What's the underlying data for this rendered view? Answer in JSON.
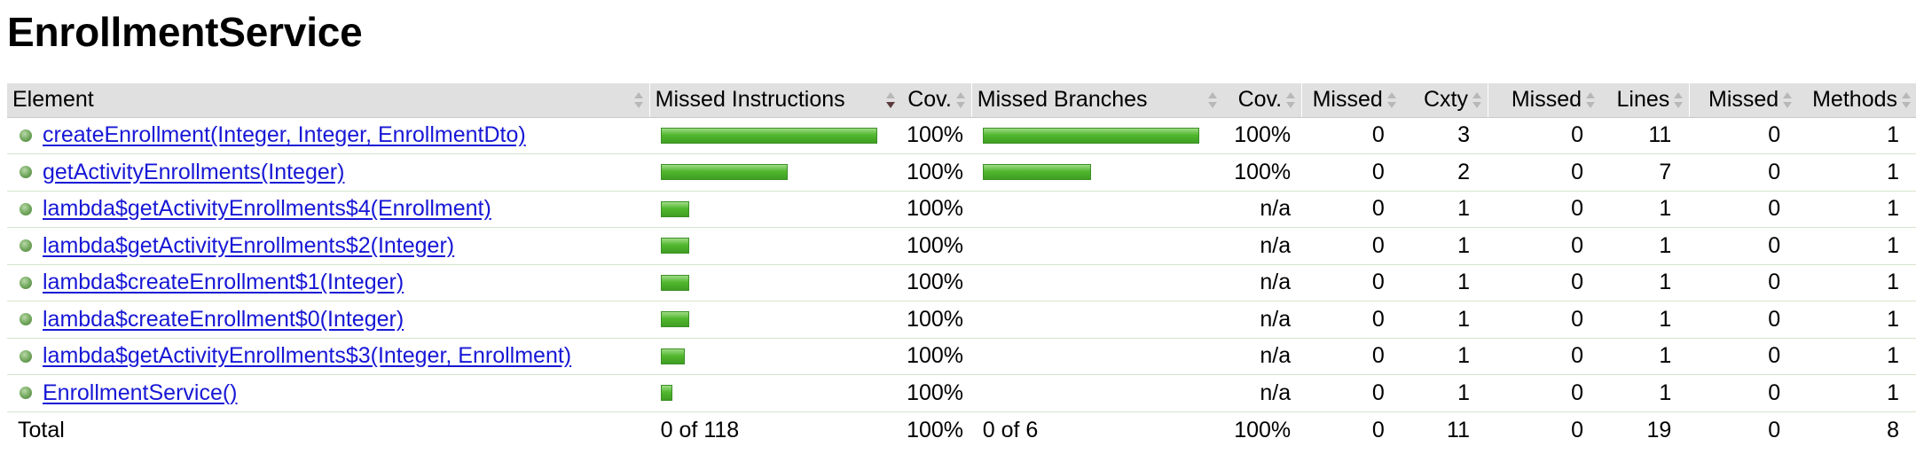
{
  "page": {
    "title": "EnrollmentService"
  },
  "colors": {
    "header_bg": "#e0e0e0",
    "link": "#1717d6",
    "bar_green": "#52b82f",
    "bullet_green": "#6fa55a"
  },
  "table": {
    "headers": {
      "element": "Element",
      "missed_instructions": "Missed Instructions",
      "cov1": "Cov.",
      "missed_branches": "Missed Branches",
      "cov2": "Cov.",
      "missed_cxty": "Missed",
      "cxty": "Cxty",
      "missed_lines": "Missed",
      "lines": "Lines",
      "missed_methods": "Missed",
      "methods": "Methods"
    },
    "sort_icons": {
      "element": "sort-both-icon",
      "missed_instructions": "sort-descending-icon",
      "others": "sort-both-icon"
    },
    "rows": [
      {
        "element": "createEnrollment(Integer, Integer, EnrollmentDto)",
        "instr_bar_fraction": 1.0,
        "instr_cov": "100%",
        "branch_bar_fraction": 1.0,
        "branch_cov": "100%",
        "missed_cxty": "0",
        "cxty": "3",
        "missed_lines": "0",
        "lines": "11",
        "missed_methods": "0",
        "methods": "1"
      },
      {
        "element": "getActivityEnrollments(Integer)",
        "instr_bar_fraction": 0.585,
        "instr_cov": "100%",
        "branch_bar_fraction": 0.5,
        "branch_cov": "100%",
        "missed_cxty": "0",
        "cxty": "2",
        "missed_lines": "0",
        "lines": "7",
        "missed_methods": "0",
        "methods": "1"
      },
      {
        "element": "lambda$getActivityEnrollments$4(Enrollment)",
        "instr_bar_fraction": 0.13,
        "instr_cov": "100%",
        "branch_bar_fraction": 0,
        "branch_cov": "n/a",
        "missed_cxty": "0",
        "cxty": "1",
        "missed_lines": "0",
        "lines": "1",
        "missed_methods": "0",
        "methods": "1"
      },
      {
        "element": "lambda$getActivityEnrollments$2(Integer)",
        "instr_bar_fraction": 0.13,
        "instr_cov": "100%",
        "branch_bar_fraction": 0,
        "branch_cov": "n/a",
        "missed_cxty": "0",
        "cxty": "1",
        "missed_lines": "0",
        "lines": "1",
        "missed_methods": "0",
        "methods": "1"
      },
      {
        "element": "lambda$createEnrollment$1(Integer)",
        "instr_bar_fraction": 0.13,
        "instr_cov": "100%",
        "branch_bar_fraction": 0,
        "branch_cov": "n/a",
        "missed_cxty": "0",
        "cxty": "1",
        "missed_lines": "0",
        "lines": "1",
        "missed_methods": "0",
        "methods": "1"
      },
      {
        "element": "lambda$createEnrollment$0(Integer)",
        "instr_bar_fraction": 0.13,
        "instr_cov": "100%",
        "branch_bar_fraction": 0,
        "branch_cov": "n/a",
        "missed_cxty": "0",
        "cxty": "1",
        "missed_lines": "0",
        "lines": "1",
        "missed_methods": "0",
        "methods": "1"
      },
      {
        "element": "lambda$getActivityEnrollments$3(Integer, Enrollment)",
        "instr_bar_fraction": 0.11,
        "instr_cov": "100%",
        "branch_bar_fraction": 0,
        "branch_cov": "n/a",
        "missed_cxty": "0",
        "cxty": "1",
        "missed_lines": "0",
        "lines": "1",
        "missed_methods": "0",
        "methods": "1"
      },
      {
        "element": "EnrollmentService()",
        "instr_bar_fraction": 0.055,
        "instr_cov": "100%",
        "branch_bar_fraction": 0,
        "branch_cov": "n/a",
        "missed_cxty": "0",
        "cxty": "1",
        "missed_lines": "0",
        "lines": "1",
        "missed_methods": "0",
        "methods": "1"
      }
    ],
    "total": {
      "label": "Total",
      "missed_instructions": "0 of 118",
      "instr_cov": "100%",
      "missed_branches": "0 of 6",
      "branch_cov": "100%",
      "missed_cxty": "0",
      "cxty": "11",
      "missed_lines": "0",
      "lines": "19",
      "missed_methods": "0",
      "methods": "8"
    }
  }
}
